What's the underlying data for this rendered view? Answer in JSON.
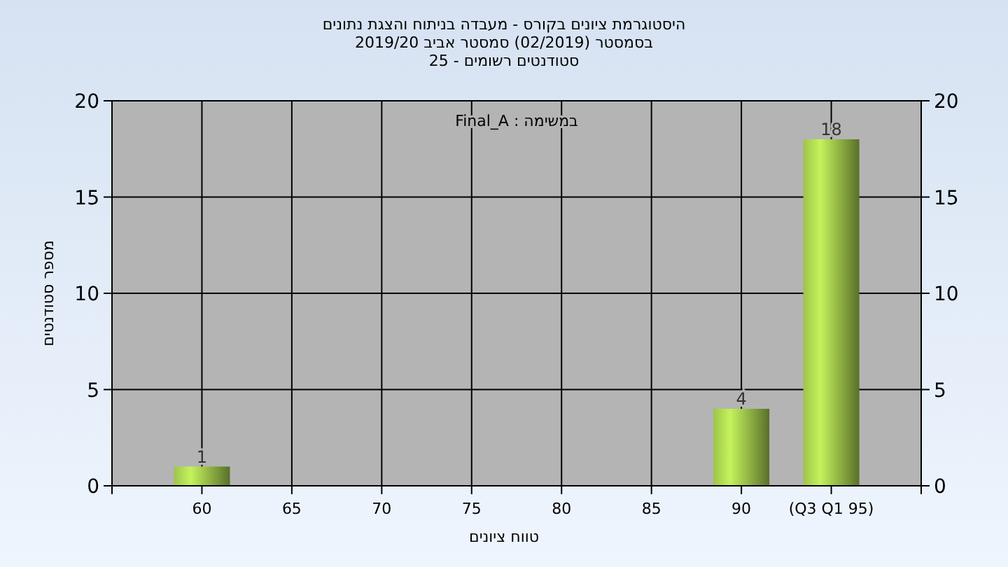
{
  "chart_data": {
    "type": "bar",
    "title": "היסטוגרמת ציונים בקורס - מעבדה בניתוח והצגת נתונים",
    "subtitle": "בסמסטר  (02/2019)  סמסטר אביב 2019/20\nסטודנטים רשומים - 25",
    "xlabel": "טווח ציונים",
    "ylabel": "מספר סטודנטים",
    "annotations": [
      "במשימה : Final_A"
    ],
    "categories": [
      "60",
      "65",
      "70",
      "75",
      "80",
      "85",
      "90",
      "(Q3 Q1 95)"
    ],
    "values": [
      1,
      0,
      0,
      0,
      0,
      0,
      4,
      18
    ],
    "value_labels": [
      "1",
      null,
      null,
      null,
      null,
      null,
      "4",
      "18"
    ],
    "color": "#9ec44a",
    "ylim": [
      0,
      20
    ],
    "yticks": [
      0,
      5,
      10,
      15,
      20
    ],
    "y2lim": [
      0,
      20
    ],
    "y2ticks": [
      0,
      5,
      10,
      15,
      20
    ],
    "grid": true
  }
}
